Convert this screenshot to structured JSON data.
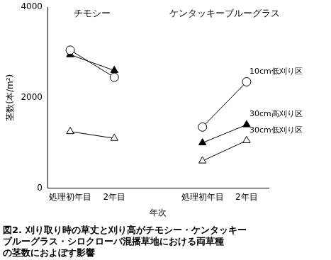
{
  "chart_data": {
    "type": "line",
    "title": [
      "図2. 刈り取り時の草丈と刈り高がチモシー・ケンタッキー",
      "ブルーグラス・シロクローバ混播草地における両草種",
      "の茎数におよぼす影響"
    ],
    "x_label": "年次",
    "y_label": "茎数(本/m²)",
    "categories": [
      "処理初年目",
      "2年目",
      null,
      "処理初年目",
      "2年目"
    ],
    "series": [
      {
        "name": "10cm低刈り区",
        "color": "#000000",
        "marker": "open_circle",
        "values": [
          3050,
          2450,
          null,
          1350,
          2350
        ]
      },
      {
        "name": "30cm高刈り区",
        "color": "#000000",
        "marker": "filled_triangle",
        "values": [
          2950,
          2600,
          null,
          1000,
          1400
        ]
      },
      {
        "name": "30cm低刈り区",
        "color": "#000000",
        "marker": "open_triangle",
        "values": [
          1250,
          1100,
          null,
          600,
          1050
        ]
      }
    ],
    "annotations": [
      {
        "text": "チモシー",
        "x": 0.5,
        "y": 3850
      },
      {
        "text": "ケンタッキーブルーグラス",
        "x": 3.5,
        "y": 3850
      }
    ],
    "ylim": [
      0,
      4000
    ],
    "yticks": [
      0,
      2000,
      4000
    ],
    "grid": false,
    "legend": false
  }
}
